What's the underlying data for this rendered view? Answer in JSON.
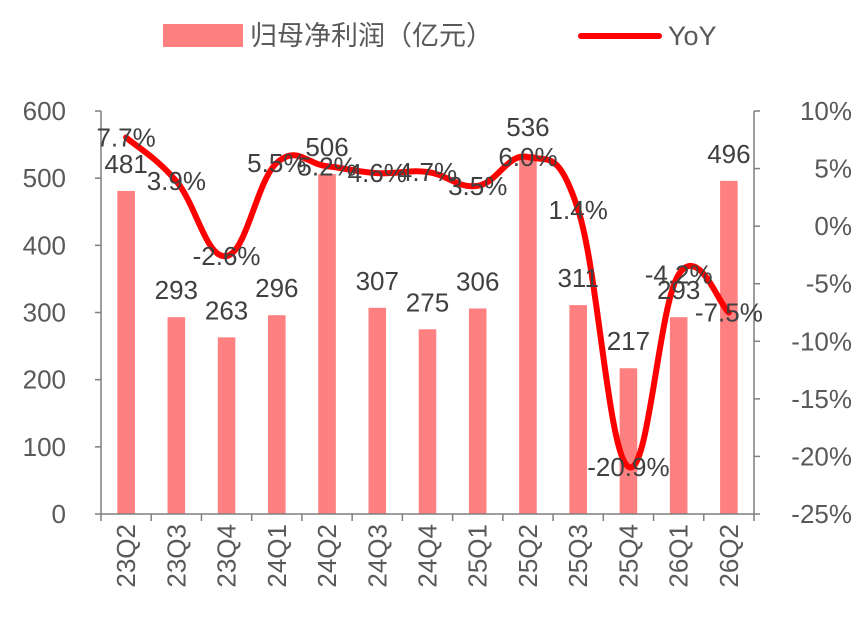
{
  "chart_data": {
    "type": "bar+line",
    "categories": [
      "23Q2",
      "23Q3",
      "23Q4",
      "24Q1",
      "24Q2",
      "24Q3",
      "24Q4",
      "25Q1",
      "25Q2",
      "25Q3",
      "25Q4",
      "26Q1",
      "26Q2"
    ],
    "series": [
      {
        "name": "归母净利润（亿元）",
        "type": "bar",
        "axis": "left",
        "values": [
          481,
          293,
          263,
          296,
          506,
          307,
          275,
          306,
          536,
          311,
          217,
          293,
          496
        ],
        "labels": [
          "481",
          "293",
          "263",
          "296",
          "506",
          "307",
          "275",
          "306",
          "536",
          "311",
          "217",
          "293",
          "496"
        ]
      },
      {
        "name": "YoY",
        "type": "line",
        "axis": "right",
        "values": [
          7.7,
          3.9,
          -2.6,
          5.5,
          5.2,
          4.6,
          4.7,
          3.5,
          6.0,
          1.4,
          -20.9,
          -4.2,
          -7.5
        ],
        "labels": [
          "7.7%",
          "3.9%",
          "-2.6%",
          "5.5%",
          "5.2%",
          "4.6%",
          "4.7%",
          "3.5%",
          "6.0%",
          "1.4%",
          "-20.9%",
          "-4.2%",
          "-7.5%"
        ]
      }
    ],
    "y_left": {
      "min": 0,
      "max": 600,
      "step": 100,
      "ticks": [
        "0",
        "100",
        "200",
        "300",
        "400",
        "500",
        "600"
      ]
    },
    "y_right": {
      "min": -25,
      "max": 10,
      "step": 5,
      "ticks": [
        "-25%",
        "-20%",
        "-15%",
        "-10%",
        "-5%",
        "0%",
        "5%",
        "10%"
      ]
    },
    "legend_position": "top",
    "grid": false,
    "colors": {
      "bar": "#ff8080",
      "line": "#ff0000",
      "axis": "#7f7f7f",
      "text": "#404040"
    }
  }
}
